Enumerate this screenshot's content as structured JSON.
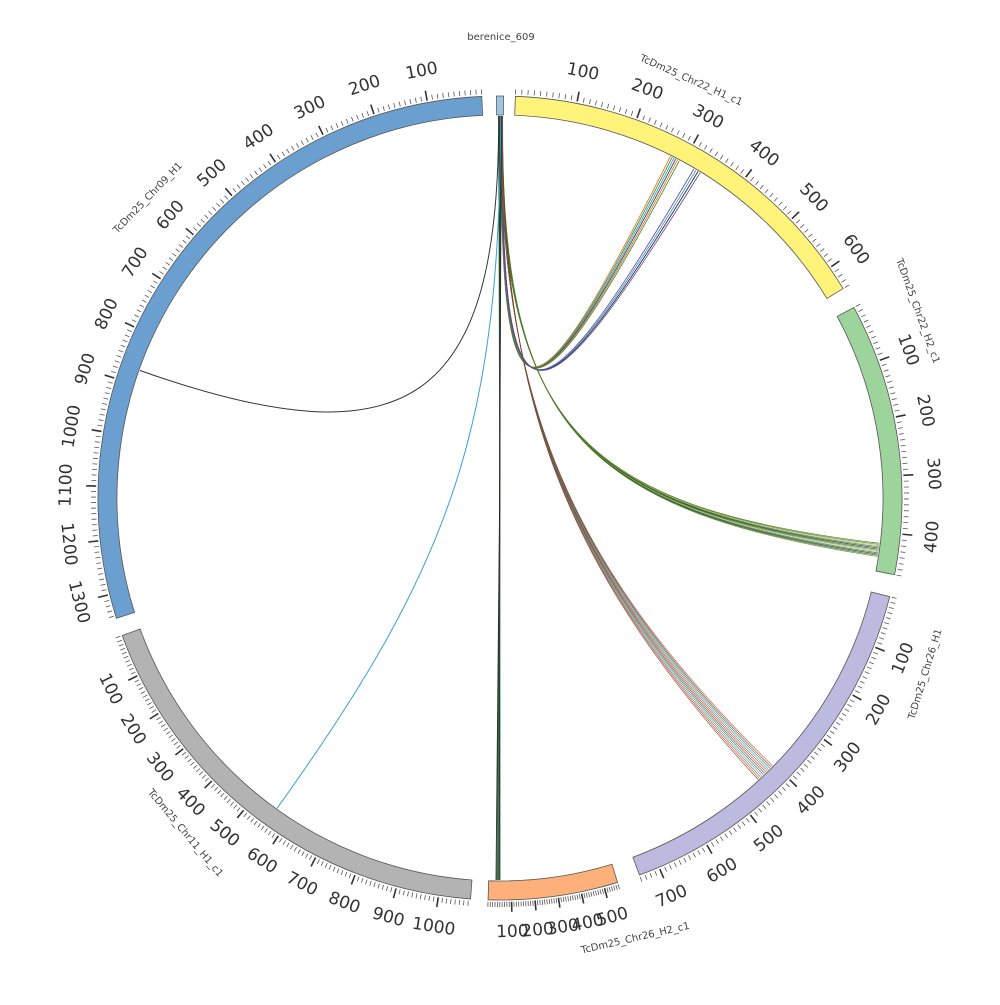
{
  "diagram": {
    "type": "circos",
    "chromosomes": [
      {
        "name": "berenice_609",
        "length": 10,
        "color": "#9ec5e3",
        "tick_labels": []
      },
      {
        "name": "TcDm25_Chr22_H1_c1",
        "length": 640,
        "color": "#fff37a",
        "tick_labels": [
          "100",
          "200",
          "300",
          "400",
          "500",
          "600"
        ]
      },
      {
        "name": "TcDm25_Chr22_H2_c1",
        "length": 470,
        "color": "#9dd49c",
        "tick_labels": [
          "100",
          "200",
          "300",
          "400"
        ]
      },
      {
        "name": "TcDm25_Chr26_H1",
        "length": 740,
        "color": "#bcbade",
        "tick_labels": [
          "100",
          "200",
          "300",
          "400",
          "500",
          "600",
          "700"
        ]
      },
      {
        "name": "TcDm25_Chr26_H2_c1",
        "length": 560,
        "color": "#feb07a",
        "tick_labels": [
          "500",
          "400",
          "300",
          "200",
          "100"
        ]
      },
      {
        "name": "TcDm25_Chr11_H1_c1",
        "length": 1075,
        "color": "#b3b3b3",
        "tick_labels": [
          "100",
          "200",
          "300",
          "400",
          "500",
          "600",
          "700",
          "800",
          "900",
          "1000"
        ]
      },
      {
        "name": "TcDm25_Chr09_H1",
        "length": 1345,
        "color": "#6b9fd0",
        "tick_labels": [
          "100",
          "200",
          "300",
          "400",
          "500",
          "600",
          "700",
          "800",
          "900",
          "1000",
          "1100",
          "1200",
          "1300"
        ]
      }
    ],
    "links": [
      {
        "from": "berenice_609",
        "to": "TcDm25_Chr22_H1_c1",
        "bundle": 6,
        "colors": [
          "#e8711a",
          "#3a8a3a",
          "#2e9bd6",
          "#333333"
        ]
      },
      {
        "from": "berenice_609",
        "to": "TcDm25_Chr22_H1_c1",
        "bundle": 4,
        "colors": [
          "#6a4c9c",
          "#2e9bd6",
          "#222222"
        ]
      },
      {
        "from": "berenice_609",
        "to": "TcDm25_Chr22_H2_c1",
        "bundle": 12,
        "colors": [
          "#3d6b1f",
          "#5a8a2a",
          "#c8c82a",
          "#2e6b9b",
          "#1f3d10"
        ]
      },
      {
        "from": "berenice_609",
        "to": "TcDm25_Chr26_H1",
        "bundle": 12,
        "colors": [
          "#c0392b",
          "#6b3a1a",
          "#2e6b3a",
          "#2e9bd6",
          "#8a5a2a"
        ]
      },
      {
        "from": "berenice_609",
        "to": "TcDm25_Chr26_H2_c1",
        "bundle": 5,
        "colors": [
          "#1f5a3a",
          "#222222",
          "#3a6b2a"
        ]
      },
      {
        "from": "berenice_609",
        "to": "TcDm25_Chr11_H1_c1",
        "bundle": 1,
        "colors": [
          "#2e9bd6"
        ]
      },
      {
        "from": "berenice_609",
        "to": "TcDm25_Chr09_H1",
        "bundle": 1,
        "colors": [
          "#2a2a2a"
        ]
      }
    ]
  }
}
